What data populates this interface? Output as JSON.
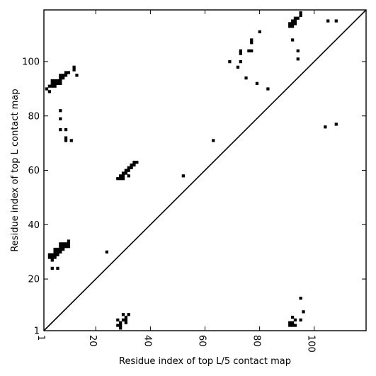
{
  "chart_data": {
    "type": "scatter",
    "marker": "square",
    "xlabel": "Residue index of top L/5 contact map",
    "ylabel": "Residue index of top L contact map",
    "xlim": [
      1,
      119
    ],
    "ylim": [
      1,
      119
    ],
    "xticks": [
      1,
      20,
      40,
      60,
      80,
      100
    ],
    "yticks": [
      1,
      20,
      40,
      60,
      80,
      100
    ],
    "diagonal_line": true,
    "colors": {
      "points": "#000000",
      "line": "#000000",
      "frame": "#000000"
    },
    "upper_left_points": [
      [
        2,
        90
      ],
      [
        3,
        89
      ],
      [
        3,
        91
      ],
      [
        4,
        91
      ],
      [
        4,
        92
      ],
      [
        4,
        93
      ],
      [
        5,
        91
      ],
      [
        5,
        92
      ],
      [
        5,
        93
      ],
      [
        6,
        92
      ],
      [
        6,
        93
      ],
      [
        7,
        92
      ],
      [
        7,
        93
      ],
      [
        7,
        94
      ],
      [
        7,
        95
      ],
      [
        8,
        94
      ],
      [
        8,
        95
      ],
      [
        9,
        95
      ],
      [
        9,
        96
      ],
      [
        10,
        96
      ],
      [
        12,
        97
      ],
      [
        12,
        98
      ],
      [
        13,
        95
      ],
      [
        7,
        82
      ],
      [
        7,
        79
      ],
      [
        7,
        75
      ],
      [
        9,
        75
      ],
      [
        9,
        72
      ],
      [
        9,
        71
      ],
      [
        11,
        71
      ],
      [
        3,
        28
      ],
      [
        3,
        29
      ],
      [
        4,
        27
      ],
      [
        4,
        28
      ],
      [
        4,
        29
      ],
      [
        5,
        28
      ],
      [
        5,
        29
      ],
      [
        5,
        30
      ],
      [
        5,
        31
      ],
      [
        6,
        29
      ],
      [
        6,
        30
      ],
      [
        6,
        31
      ],
      [
        7,
        30
      ],
      [
        7,
        31
      ],
      [
        7,
        32
      ],
      [
        7,
        33
      ],
      [
        8,
        31
      ],
      [
        8,
        32
      ],
      [
        8,
        33
      ],
      [
        9,
        32
      ],
      [
        9,
        33
      ],
      [
        10,
        32
      ],
      [
        10,
        33
      ],
      [
        10,
        34
      ],
      [
        4,
        24
      ],
      [
        6,
        24
      ],
      [
        24,
        30
      ],
      [
        28,
        57
      ],
      [
        29,
        57
      ],
      [
        29,
        58
      ],
      [
        30,
        57
      ],
      [
        30,
        58
      ],
      [
        30,
        59
      ],
      [
        31,
        59
      ],
      [
        31,
        60
      ],
      [
        32,
        58
      ],
      [
        32,
        60
      ],
      [
        32,
        61
      ],
      [
        33,
        61
      ],
      [
        33,
        62
      ],
      [
        34,
        62
      ],
      [
        34,
        63
      ],
      [
        35,
        63
      ],
      [
        52,
        58
      ],
      [
        63,
        71
      ],
      [
        69,
        100
      ],
      [
        72,
        98
      ],
      [
        73,
        100
      ],
      [
        73,
        103
      ],
      [
        73,
        104
      ],
      [
        75,
        94
      ],
      [
        76,
        104
      ],
      [
        77,
        104
      ],
      [
        77,
        107
      ],
      [
        77,
        108
      ],
      [
        79,
        92
      ],
      [
        80,
        111
      ],
      [
        83,
        90
      ],
      [
        91,
        113
      ],
      [
        91,
        114
      ],
      [
        92,
        113
      ],
      [
        92,
        114
      ],
      [
        92,
        115
      ],
      [
        93,
        114
      ],
      [
        93,
        115
      ],
      [
        93,
        116
      ],
      [
        94,
        116
      ],
      [
        95,
        117
      ],
      [
        95,
        118
      ],
      [
        92,
        108
      ],
      [
        94,
        104
      ],
      [
        94,
        101
      ],
      [
        105,
        115
      ],
      [
        108,
        115
      ],
      [
        104,
        76
      ],
      [
        108,
        77
      ]
    ],
    "lower_right_points": [
      [
        28,
        5
      ],
      [
        28,
        3
      ],
      [
        29,
        3
      ],
      [
        29,
        2
      ],
      [
        29,
        4
      ],
      [
        30,
        5
      ],
      [
        30,
        7
      ],
      [
        31,
        5
      ],
      [
        31,
        6
      ],
      [
        31,
        4
      ],
      [
        32,
        7
      ],
      [
        91,
        4
      ],
      [
        91,
        3
      ],
      [
        92,
        3
      ],
      [
        92,
        4
      ],
      [
        92,
        6
      ],
      [
        93,
        3
      ],
      [
        93,
        5
      ],
      [
        95,
        5
      ],
      [
        95,
        13
      ],
      [
        96,
        8
      ]
    ]
  }
}
